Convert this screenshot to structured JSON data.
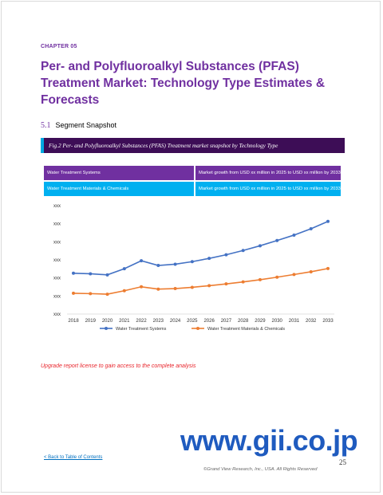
{
  "chapter": "CHAPTER 05",
  "title": "Per- and Polyfluoroalkyl Substances (PFAS) Treatment Market: Technology Type Estimates & Forecasts",
  "section": {
    "number": "5.1",
    "title": "Segment Snapshot"
  },
  "figure_caption": "Fig.2 Per- and Polyfluoroalkyl Substances (PFAS) Treatment market snapshot by Technology Type",
  "segments": [
    {
      "name": "Water Treatment Systems",
      "growth": "Market growth from USD xx million in 2025 to USD xx million by 2033",
      "color": "#7030a0"
    },
    {
      "name": "Water Treatment Materials & Chemicals",
      "growth": "Market growth from USD xx million in 2025 to USD xx million by 2033",
      "color": "#00b0f0"
    }
  ],
  "chart_data": {
    "type": "line",
    "x": [
      "2018",
      "2019",
      "2020",
      "2021",
      "2022",
      "2023",
      "2024",
      "2025",
      "2026",
      "2027",
      "2028",
      "2029",
      "2030",
      "2031",
      "2032",
      "2033"
    ],
    "y_tick_labels": [
      "xxx",
      "xxx",
      "xxx",
      "xxx",
      "xxx",
      "xxx",
      "xxx"
    ],
    "ylim": [
      0,
      6
    ],
    "grid": false,
    "legend_position": "bottom",
    "series": [
      {
        "name": "Water Treatment Systems",
        "color": "#4472c4",
        "values": [
          2.26,
          2.23,
          2.17,
          2.51,
          2.95,
          2.69,
          2.76,
          2.9,
          3.08,
          3.28,
          3.52,
          3.78,
          4.07,
          4.37,
          4.72,
          5.13
        ]
      },
      {
        "name": "Water Treatment Materials & Chemicals",
        "color": "#ed7d31",
        "values": [
          1.15,
          1.13,
          1.1,
          1.29,
          1.51,
          1.38,
          1.41,
          1.48,
          1.57,
          1.67,
          1.78,
          1.9,
          2.04,
          2.19,
          2.34,
          2.52
        ]
      }
    ]
  },
  "upgrade_notice": "Upgrade report license to gain access to the complete analysis",
  "watermark": "www.gii.co.jp",
  "back_link": "< Back to Table of Contents",
  "page_number": "25",
  "copyright": "©Grand View Research, Inc., USA. All Rights Reserved"
}
